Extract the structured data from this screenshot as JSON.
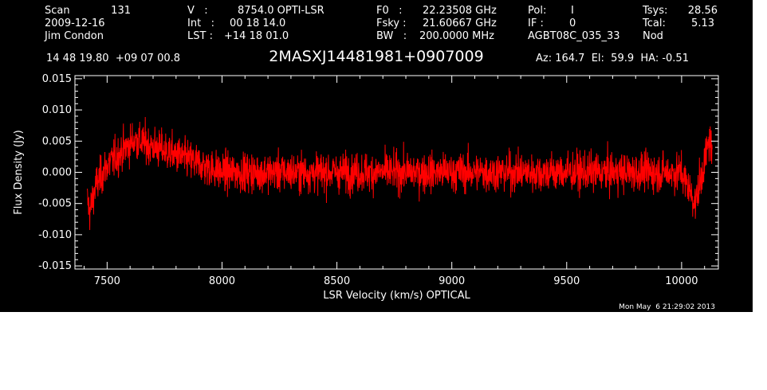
{
  "header": {
    "scan_label": "Scan",
    "scan_value": "131",
    "date": "2009-12-16",
    "observer": "Jim Condon",
    "v_label": "V   :",
    "v_value": "8754.0 OPTI-LSR",
    "int_label": "Int   :",
    "int_value": "00 18 14.0",
    "lst_label": "LST :",
    "lst_value": "+14 18 01.0",
    "f0_label": "F0   :",
    "f0_value": "22.23508 GHz",
    "fsky_label": "Fsky :",
    "fsky_value": "21.60667 GHz",
    "bw_label": "BW   :",
    "bw_value": "200.0000 MHz",
    "pol_label": "Pol:",
    "pol_value": "I",
    "if_label": "IF :",
    "if_value": "0",
    "project": "AGBT08C_035_33",
    "tsys_label": "Tsys:",
    "tsys_value": "28.56",
    "tcal_label": "Tcal:",
    "tcal_value": "5.13",
    "nod": "Nod",
    "coords": "14 48 19.80  +09 07 00.8",
    "object": "2MASXJ14481981+0907009",
    "az_el_ha": "Az: 164.7  El:  59.9  HA: -0.51"
  },
  "timestamp": "Mon May  6 21:29:02 2013",
  "colors": {
    "background": "#000000",
    "axes": "#ffffff",
    "trace": "#ff0000"
  },
  "chart_data": {
    "type": "line",
    "xlabel": "LSR Velocity (km/s) OPTICAL",
    "ylabel": "Flux Density (Jy)",
    "xlim": [
      7360,
      10160
    ],
    "ylim": [
      -0.0155,
      0.0155
    ],
    "xticks": [
      "7500",
      "8000",
      "8500",
      "9000",
      "9500",
      "10000"
    ],
    "xtick_values": [
      7500,
      8000,
      8500,
      9000,
      9500,
      10000
    ],
    "yticks": [
      "0.015",
      "0.010",
      "0.005",
      "0.000",
      "-0.005",
      "-0.010",
      "-0.015"
    ],
    "ytick_values": [
      0.015,
      0.01,
      0.005,
      0.0,
      -0.005,
      -0.01,
      -0.015
    ],
    "series": [
      {
        "x_start": 7414,
        "x_end": 10133,
        "noise_rms": 0.0025,
        "values_summary": "noise-like spectrum centered on 0.000 Jy, edge deviations near 7420 (min about -0.0115) and near 10130 (max about 0.0105)",
        "x": [
          7415,
          7425,
          7450,
          7500,
          7620,
          8000,
          8500,
          9000,
          9500,
          10000,
          10060,
          10110,
          10125,
          10133
        ],
        "y": [
          -0.0085,
          -0.0115,
          -0.004,
          0.002,
          0.0095,
          0.0,
          0.0,
          0.0,
          0.0,
          0.0,
          -0.009,
          0.006,
          0.0105,
          0.003
        ]
      }
    ]
  }
}
